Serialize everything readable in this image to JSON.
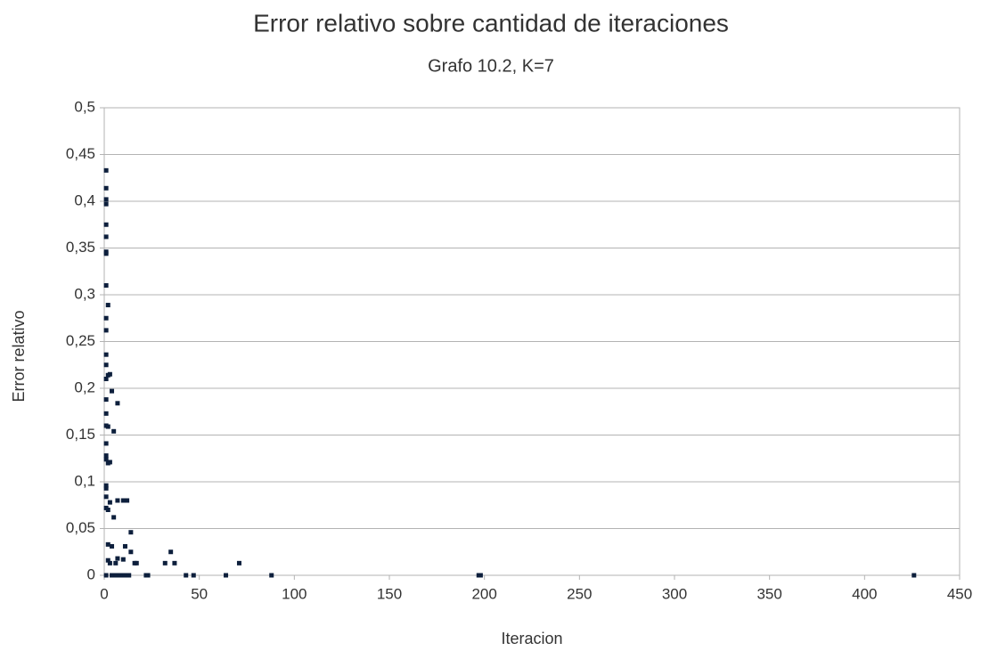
{
  "chart_data": {
    "type": "scatter",
    "title": "Error relativo sobre cantidad de iteraciones",
    "subtitle": "Grafo 10.2, K=7",
    "x_label": "Iteracion",
    "y_label": "Error relativo",
    "color": "#0d1f3c",
    "grid": true,
    "xlim": [
      0,
      450
    ],
    "xticks": [
      0,
      50,
      100,
      150,
      200,
      250,
      300,
      350,
      400,
      450
    ],
    "ylim": [
      0,
      0.5
    ],
    "yticks": [
      {
        "value": 0,
        "label": "0"
      },
      {
        "value": 0.05,
        "label": "0,05"
      },
      {
        "value": 0.1,
        "label": "0,1"
      },
      {
        "value": 0.15,
        "label": "0,15"
      },
      {
        "value": 0.2,
        "label": "0,2"
      },
      {
        "value": 0.25,
        "label": "0,25"
      },
      {
        "value": 0.3,
        "label": "0,3"
      },
      {
        "value": 0.35,
        "label": "0,35"
      },
      {
        "value": 0.4,
        "label": "0,4"
      },
      {
        "value": 0.45,
        "label": "0,45"
      },
      {
        "value": 0.5,
        "label": "0,5"
      }
    ],
    "x": [
      1,
      1,
      1,
      1,
      1,
      1,
      1,
      1,
      1,
      1,
      1,
      1,
      1,
      1,
      1,
      1,
      1,
      1,
      1,
      1,
      1,
      1,
      1,
      1,
      1,
      2,
      2,
      2,
      2,
      2,
      2,
      2,
      3,
      3,
      3,
      3,
      4,
      4,
      4,
      5,
      5,
      5,
      6,
      6,
      7,
      7,
      7,
      8,
      10,
      10,
      10,
      11,
      11,
      12,
      13,
      14,
      14,
      16,
      17,
      22,
      23,
      32,
      35,
      37,
      43,
      47,
      64,
      71,
      88,
      197,
      198,
      426
    ],
    "values": [
      0.433,
      0.414,
      0.402,
      0.397,
      0.375,
      0.362,
      0.346,
      0.344,
      0.31,
      0.275,
      0.262,
      0.236,
      0.225,
      0.21,
      0.188,
      0.173,
      0.16,
      0.141,
      0.128,
      0.124,
      0.096,
      0.093,
      0.084,
      0.072,
      0,
      0.289,
      0.214,
      0.159,
      0.12,
      0.07,
      0.033,
      0.016,
      0.215,
      0.121,
      0.078,
      0.013,
      0.197,
      0.031,
      0,
      0.154,
      0.062,
      0,
      0.013,
      0,
      0.184,
      0.08,
      0.018,
      0,
      0.08,
      0.017,
      0,
      0.031,
      0,
      0.08,
      0,
      0.046,
      0.025,
      0.013,
      0.013,
      0,
      0,
      0.013,
      0.025,
      0.013,
      0,
      0,
      0,
      0.013,
      0,
      0,
      0,
      0
    ]
  }
}
